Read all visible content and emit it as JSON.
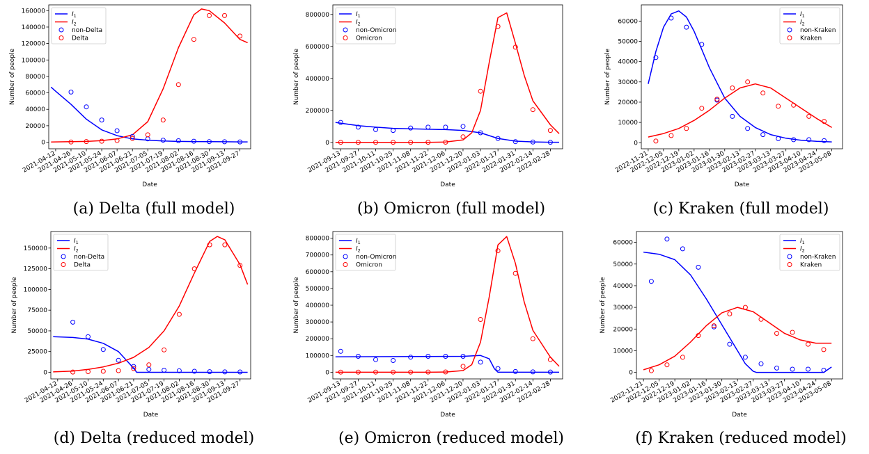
{
  "colors": {
    "i1": "#0000ff",
    "i2": "#ff0000"
  },
  "chart_data": [
    {
      "type": "line",
      "id": "a",
      "caption": "(a) Delta (full model)",
      "xlabel": "Date",
      "ylabel": "Number of people",
      "x_ticks": [
        "2021-04-12",
        "2021-04-26",
        "2021-05-10",
        "2021-05-24",
        "2021-06-07",
        "2021-06-21",
        "2021-07-05",
        "2021-07-19",
        "2021-08-02",
        "2021-08-16",
        "2021-08-30",
        "2021-09-13",
        "2021-09-27"
      ],
      "y_ticks": [
        0,
        20000,
        40000,
        60000,
        80000,
        100000,
        120000,
        140000,
        160000
      ],
      "xlim": [
        -0.45,
        12.7
      ],
      "ylim": [
        -8000,
        167000
      ],
      "legend": [
        "I1",
        "I2",
        "non-Delta",
        "Delta"
      ],
      "legend_pos": "top-left",
      "legend_labels": {
        "i1": "I",
        "i1_sub": "1",
        "i2": "I",
        "i2_sub": "2",
        "s1": "non-Delta",
        "s2": "Delta"
      },
      "curve1": {
        "x": [
          -0.3,
          0,
          1,
          2,
          3,
          4,
          5,
          6,
          7,
          8,
          9,
          10,
          11,
          12,
          12.5
        ],
        "y": [
          67000,
          62000,
          46000,
          28000,
          15000,
          8000,
          4000,
          2500,
          1500,
          1000,
          800,
          600,
          500,
          400,
          400
        ]
      },
      "curve2": {
        "x": [
          -0.3,
          0,
          1,
          2,
          3,
          4,
          5,
          6,
          7,
          8,
          9,
          9.5,
          10,
          11,
          12,
          12.5
        ],
        "y": [
          300,
          400,
          600,
          1000,
          2000,
          4000,
          9000,
          25000,
          65000,
          115000,
          155000,
          162000,
          160000,
          145000,
          125000,
          121000
        ]
      },
      "points1": {
        "x": [
          1,
          2,
          3,
          4,
          5,
          6,
          7,
          8,
          9,
          10,
          11,
          12
        ],
        "y": [
          61000,
          43000,
          27000,
          14000,
          7000,
          4000,
          2500,
          1800,
          1200,
          700,
          500,
          400
        ]
      },
      "points2": {
        "x": [
          1,
          2,
          3,
          4,
          5,
          6,
          7,
          8,
          9,
          10,
          11,
          12
        ],
        "y": [
          300,
          800,
          1200,
          2000,
          4500,
          9000,
          27000,
          70000,
          125000,
          154000,
          154000,
          129000
        ]
      }
    },
    {
      "type": "line",
      "id": "b",
      "caption": "(b) Omicron (full model)",
      "xlabel": "Date",
      "ylabel": "Number of people",
      "x_ticks": [
        "2021-09-13",
        "2021-09-27",
        "2021-10-11",
        "2021-10-25",
        "2021-11-08",
        "2021-11-22",
        "2021-12-06",
        "2021-12-20",
        "2022-01-03",
        "2022-01-17",
        "2022-01-31",
        "2022-02-14",
        "2022-02-28"
      ],
      "y_ticks": [
        0,
        200000,
        400000,
        600000,
        800000
      ],
      "xlim": [
        -0.45,
        12.7
      ],
      "ylim": [
        -40000,
        860000
      ],
      "legend": [
        "I1",
        "I2",
        "non-Omicron",
        "Omicron"
      ],
      "legend_pos": "top-left",
      "legend_labels": {
        "i1": "I",
        "i1_sub": "1",
        "i2": "I",
        "i2_sub": "2",
        "s1": "non-Omicron",
        "s2": "Omicron"
      },
      "curve1": {
        "x": [
          -0.3,
          1,
          2,
          3,
          4,
          5,
          6,
          7,
          8,
          9,
          10,
          11,
          12,
          12.5
        ],
        "y": [
          125000,
          105000,
          95000,
          88000,
          85000,
          82000,
          80000,
          75000,
          60000,
          25000,
          8000,
          3000,
          1000,
          800
        ]
      },
      "curve2": {
        "x": [
          -0.3,
          5,
          6,
          7,
          7.5,
          8,
          8.5,
          9,
          9.5,
          10,
          10.5,
          11,
          12,
          12.5
        ],
        "y": [
          0,
          500,
          2000,
          15000,
          60000,
          200000,
          500000,
          780000,
          810000,
          620000,
          420000,
          260000,
          110000,
          55000
        ]
      },
      "points1": {
        "x": [
          0,
          1,
          2,
          3,
          4,
          5,
          6,
          7,
          8,
          9,
          10,
          11,
          12
        ],
        "y": [
          125000,
          95000,
          80000,
          75000,
          90000,
          95000,
          95000,
          100000,
          60000,
          25000,
          5000,
          2000,
          1000
        ]
      },
      "points2": {
        "x": [
          0,
          1,
          2,
          3,
          4,
          5,
          6,
          7,
          8,
          9,
          10,
          11,
          12
        ],
        "y": [
          500,
          500,
          500,
          500,
          500,
          1000,
          1500,
          35000,
          320000,
          725000,
          595000,
          205000,
          75000
        ]
      }
    },
    {
      "type": "line",
      "id": "c",
      "caption": "(c) Kraken (full model)",
      "xlabel": "Date",
      "ylabel": "Number of people",
      "x_ticks": [
        "2022-11-21",
        "2022-12-05",
        "2022-12-19",
        "2023-01-02",
        "2023-01-16",
        "2023-01-30",
        "2023-02-13",
        "2023-02-27",
        "2023-03-13",
        "2023-03-27",
        "2023-04-10",
        "2023-04-24",
        "2023-05-08"
      ],
      "y_ticks": [
        0,
        10000,
        20000,
        30000,
        40000,
        50000,
        60000
      ],
      "xlim": [
        -0.45,
        12.7
      ],
      "ylim": [
        -3000,
        68000
      ],
      "legend": [
        "I1",
        "I2",
        "non-Kraken",
        "Kraken"
      ],
      "legend_pos": "top-right",
      "legend_labels": {
        "i1": "I",
        "i1_sub": "1",
        "i2": "I",
        "i2_sub": "2",
        "s1": "non-Kraken",
        "s2": "Kraken"
      },
      "curve1": {
        "x": [
          0,
          0.5,
          1,
          1.5,
          2,
          2.5,
          3,
          3.5,
          4,
          5,
          6,
          7,
          8,
          9,
          10,
          11,
          12
        ],
        "y": [
          29000,
          45000,
          57000,
          63500,
          65000,
          62000,
          55000,
          46000,
          37000,
          22000,
          13000,
          7500,
          4000,
          2200,
          1200,
          700,
          400
        ]
      },
      "curve2": {
        "x": [
          0,
          1,
          2,
          3,
          4,
          5,
          6,
          7,
          8,
          9,
          10,
          11,
          12
        ],
        "y": [
          2800,
          4500,
          7000,
          11000,
          16000,
          22000,
          27000,
          29000,
          27000,
          22000,
          17000,
          12000,
          7500
        ]
      },
      "points1": {
        "x": [
          0.5,
          1.5,
          2.5,
          3.5,
          4.5,
          5.5,
          6.5,
          7.5,
          8.5,
          9.5,
          10.5,
          11.5
        ],
        "y": [
          42000,
          61500,
          57000,
          48500,
          21000,
          13000,
          7000,
          4000,
          2000,
          1500,
          1500,
          1000
        ]
      },
      "points2": {
        "x": [
          0.5,
          1.5,
          2.5,
          3.5,
          4.5,
          5.5,
          6.5,
          7.5,
          8.5,
          9.5,
          10.5,
          11.5
        ],
        "y": [
          800,
          3500,
          7000,
          17000,
          21500,
          27000,
          30000,
          24500,
          18000,
          18500,
          13000,
          10500
        ]
      }
    },
    {
      "type": "line",
      "id": "d",
      "caption": "(d) Delta (reduced model)",
      "xlabel": "Date",
      "ylabel": "Number of people",
      "x_ticks": [
        "2021-04-12",
        "2021-04-26",
        "2021-05-10",
        "2021-05-24",
        "2021-06-07",
        "2021-06-21",
        "2021-07-05",
        "2021-07-19",
        "2021-08-02",
        "2021-08-16",
        "2021-08-30",
        "2021-09-13",
        "2021-09-27"
      ],
      "y_ticks": [
        0,
        25000,
        50000,
        75000,
        100000,
        125000,
        150000
      ],
      "xlim": [
        -0.45,
        12.7
      ],
      "ylim": [
        -8000,
        170000
      ],
      "legend": [
        "I1",
        "I2",
        "non-Delta",
        "Delta"
      ],
      "legend_pos": "top-left",
      "legend_labels": {
        "i1": "I",
        "i1_sub": "1",
        "i2": "I",
        "i2_sub": "2",
        "s1": "non-Delta",
        "s2": "Delta"
      },
      "curve1": {
        "x": [
          -0.3,
          1,
          2,
          3,
          4,
          4.5,
          5,
          5.2,
          6,
          7,
          8,
          9,
          10,
          11,
          12,
          12.5
        ],
        "y": [
          43000,
          42000,
          40000,
          35000,
          25000,
          15000,
          5000,
          0,
          0,
          0,
          0,
          0,
          0,
          0,
          0,
          0
        ]
      },
      "curve2": {
        "x": [
          -0.3,
          1,
          2,
          3,
          4,
          5,
          6,
          7,
          8,
          9,
          10,
          10.5,
          11,
          12,
          12.5
        ],
        "y": [
          500,
          1500,
          3500,
          6500,
          11000,
          18000,
          30000,
          50000,
          80000,
          120000,
          158000,
          164000,
          160000,
          130000,
          106000
        ]
      },
      "points1": {
        "x": [
          1,
          2,
          3,
          4,
          5,
          6,
          7,
          8,
          9,
          10,
          11,
          12
        ],
        "y": [
          60500,
          43000,
          27500,
          14500,
          7000,
          3500,
          2500,
          1800,
          1200,
          700,
          500,
          400
        ]
      },
      "points2": {
        "x": [
          1,
          2,
          3,
          4,
          5,
          6,
          7,
          8,
          9,
          10,
          11,
          12
        ],
        "y": [
          300,
          800,
          1200,
          2000,
          4500,
          9000,
          27000,
          70000,
          125000,
          154000,
          154000,
          129000
        ]
      }
    },
    {
      "type": "line",
      "id": "e",
      "caption": "(e) Omicron (reduced model)",
      "xlabel": "Date",
      "ylabel": "Number of people",
      "x_ticks": [
        "2021-09-13",
        "2021-09-27",
        "2021-10-11",
        "2021-10-25",
        "2021-11-08",
        "2021-11-22",
        "2021-12-06",
        "2021-12-20",
        "2022-01-03",
        "2022-01-17",
        "2022-01-31",
        "2022-02-14",
        "2022-02-28"
      ],
      "y_ticks": [
        0,
        100000,
        200000,
        300000,
        400000,
        500000,
        600000,
        700000,
        800000
      ],
      "xlim": [
        -0.45,
        12.7
      ],
      "ylim": [
        -40000,
        840000
      ],
      "legend": [
        "I1",
        "I2",
        "non-Omicron",
        "Omicron"
      ],
      "legend_pos": "top-left",
      "legend_labels": {
        "i1": "I",
        "i1_sub": "1",
        "i2": "I",
        "i2_sub": "2",
        "s1": "non-Omicron",
        "s2": "Omicron"
      },
      "curve1": {
        "x": [
          -0.3,
          7,
          8,
          8.5,
          8.8,
          9,
          10,
          11,
          12,
          12.5
        ],
        "y": [
          92000,
          95000,
          100000,
          80000,
          20000,
          0,
          0,
          0,
          0,
          0
        ]
      },
      "curve2": {
        "x": [
          -0.3,
          5,
          6,
          7,
          7.5,
          8,
          8.5,
          9,
          9.5,
          10,
          10.5,
          11,
          12,
          12.5
        ],
        "y": [
          0,
          0,
          1000,
          10000,
          45000,
          180000,
          450000,
          760000,
          810000,
          650000,
          420000,
          250000,
          90000,
          35000
        ]
      },
      "points1": {
        "x": [
          0,
          1,
          2,
          3,
          4,
          5,
          6,
          7,
          8,
          9,
          10,
          11,
          12
        ],
        "y": [
          125000,
          95000,
          75000,
          70000,
          90000,
          95000,
          95000,
          95000,
          60000,
          22000,
          4000,
          2000,
          1000
        ]
      },
      "points2": {
        "x": [
          0,
          1,
          2,
          3,
          4,
          5,
          6,
          7,
          8,
          9,
          10,
          11,
          12
        ],
        "y": [
          500,
          500,
          500,
          500,
          500,
          1000,
          1500,
          35000,
          315000,
          725000,
          590000,
          200000,
          75000
        ]
      }
    },
    {
      "type": "line",
      "id": "f",
      "caption": "(f) Kraken (reduced model)",
      "xlabel": "Date",
      "ylabel": "Number of people",
      "x_ticks": [
        "2022-11-21",
        "2022-12-05",
        "2022-12-19",
        "2023-01-02",
        "2023-01-16",
        "2023-01-30",
        "2023-02-13",
        "2023-02-27",
        "2023-03-13",
        "2023-03-27",
        "2023-04-10",
        "2023-04-24",
        "2023-05-08"
      ],
      "y_ticks": [
        0,
        10000,
        20000,
        30000,
        40000,
        50000,
        60000
      ],
      "xlim": [
        -0.45,
        12.7
      ],
      "ylim": [
        -3000,
        65000
      ],
      "legend": [
        "I1",
        "I2",
        "non-Kraken",
        "Kraken"
      ],
      "legend_pos": "top-right",
      "legend_labels": {
        "i1": "I",
        "i1_sub": "1",
        "i2": "I",
        "i2_sub": "2",
        "s1": "non-Kraken",
        "s2": "Kraken"
      },
      "curve1": {
        "x": [
          0,
          1,
          2,
          3,
          4,
          5,
          6,
          6.5,
          7,
          7.2,
          8,
          9,
          10,
          11,
          11.5,
          12
        ],
        "y": [
          55500,
          54500,
          52000,
          45000,
          34000,
          22000,
          10000,
          4000,
          500,
          0,
          0,
          0,
          0,
          0,
          0,
          2500
        ]
      },
      "curve2": {
        "x": [
          0,
          1,
          2,
          3,
          4,
          5,
          6,
          7,
          8,
          9,
          10,
          11,
          12
        ],
        "y": [
          1200,
          3500,
          7500,
          14000,
          21500,
          27500,
          30000,
          28000,
          23000,
          18000,
          15000,
          13500,
          13500
        ]
      },
      "points1": {
        "x": [
          0.5,
          1.5,
          2.5,
          3.5,
          4.5,
          5.5,
          6.5,
          7.5,
          8.5,
          9.5,
          10.5,
          11.5
        ],
        "y": [
          42000,
          61500,
          57000,
          48500,
          21000,
          13000,
          7000,
          4000,
          2000,
          1500,
          1500,
          1000
        ]
      },
      "points2": {
        "x": [
          0.5,
          1.5,
          2.5,
          3.5,
          4.5,
          5.5,
          6.5,
          7.5,
          8.5,
          9.5,
          10.5,
          11.5
        ],
        "y": [
          800,
          3500,
          7000,
          17000,
          21500,
          27000,
          30000,
          24500,
          18000,
          18500,
          13000,
          10500
        ]
      }
    }
  ]
}
